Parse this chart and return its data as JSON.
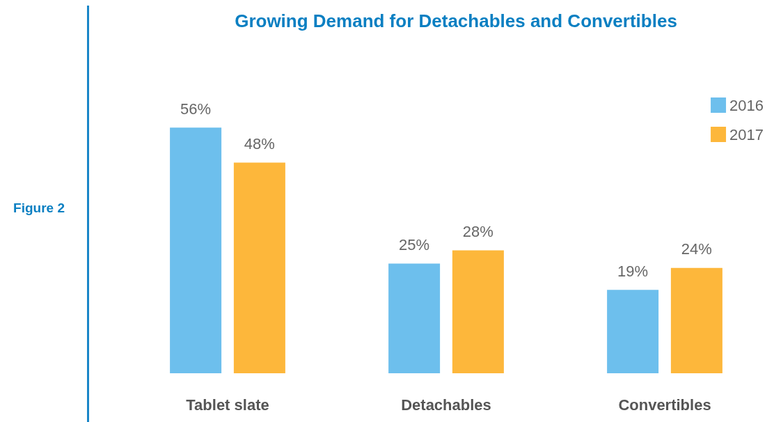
{
  "chart_data": {
    "type": "bar",
    "title": "Growing Demand for Detachables and Convertibles",
    "annotations": [
      "Figure 2"
    ],
    "categories": [
      "Tablet slate",
      "Detachables",
      "Convertibles"
    ],
    "series": [
      {
        "name": "2016",
        "color": "#6dbfed",
        "values": [
          56,
          25,
          19
        ],
        "value_labels": [
          "56%",
          "25%",
          "19%"
        ]
      },
      {
        "name": "2017",
        "color": "#fdb73b",
        "values": [
          48,
          28,
          24
        ],
        "value_labels": [
          "48%",
          "28%",
          "24%"
        ]
      }
    ],
    "legend": "top right",
    "grid": false
  }
}
